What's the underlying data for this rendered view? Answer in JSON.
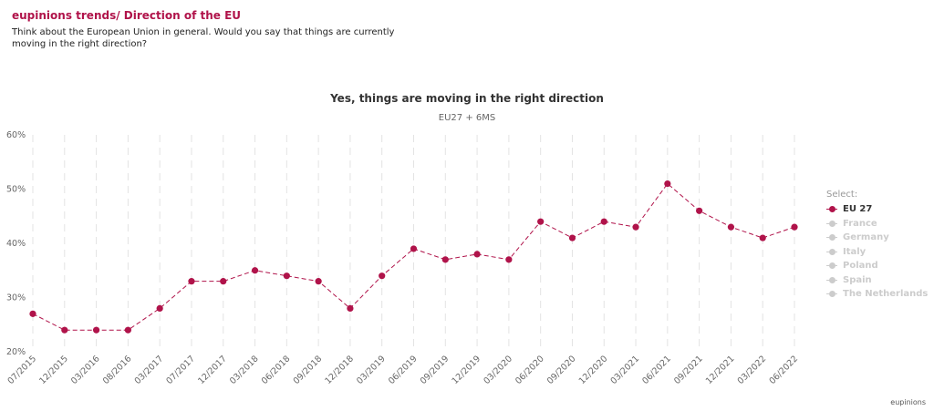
{
  "header": {
    "title": "eupinions trends/ Direction of the EU",
    "question": "Think about the European Union in general. Would you say that things are currently moving in the right direction?"
  },
  "chart_data": {
    "type": "line",
    "title": "Yes, things are moving in the right direction",
    "subtitle": "EU27 + 6MS",
    "x": [
      "07/2015",
      "12/2015",
      "03/2016",
      "08/2016",
      "03/2017",
      "07/2017",
      "12/2017",
      "03/2018",
      "06/2018",
      "09/2018",
      "12/2018",
      "03/2019",
      "06/2019",
      "09/2019",
      "12/2019",
      "03/2020",
      "06/2020",
      "09/2020",
      "12/2020",
      "03/2021",
      "06/2021",
      "09/2021",
      "12/2021",
      "03/2022",
      "06/2022"
    ],
    "series": [
      {
        "name": "EU 27",
        "color": "#b0134a",
        "active": true,
        "values": [
          27,
          24,
          24,
          24,
          28,
          33,
          33,
          35,
          34,
          33,
          28,
          34,
          39,
          37,
          38,
          37,
          44,
          41,
          44,
          43,
          51,
          46,
          43,
          41,
          43
        ]
      }
    ],
    "y_ticks": [
      "20%",
      "30%",
      "40%",
      "50%",
      "60%"
    ],
    "ylim": [
      20,
      60
    ],
    "grid": "vertical dashed",
    "legend_position": "right"
  },
  "legend": {
    "title": "Select:",
    "items": [
      {
        "label": "EU 27",
        "color": "#b0134a",
        "active": true
      },
      {
        "label": "France",
        "color": "#cccccc",
        "active": false
      },
      {
        "label": "Germany",
        "color": "#cccccc",
        "active": false
      },
      {
        "label": "Italy",
        "color": "#cccccc",
        "active": false
      },
      {
        "label": "Poland",
        "color": "#cccccc",
        "active": false
      },
      {
        "label": "Spain",
        "color": "#cccccc",
        "active": false
      },
      {
        "label": "The Netherlands",
        "color": "#cccccc",
        "active": false
      }
    ]
  },
  "credit": "eupinions"
}
